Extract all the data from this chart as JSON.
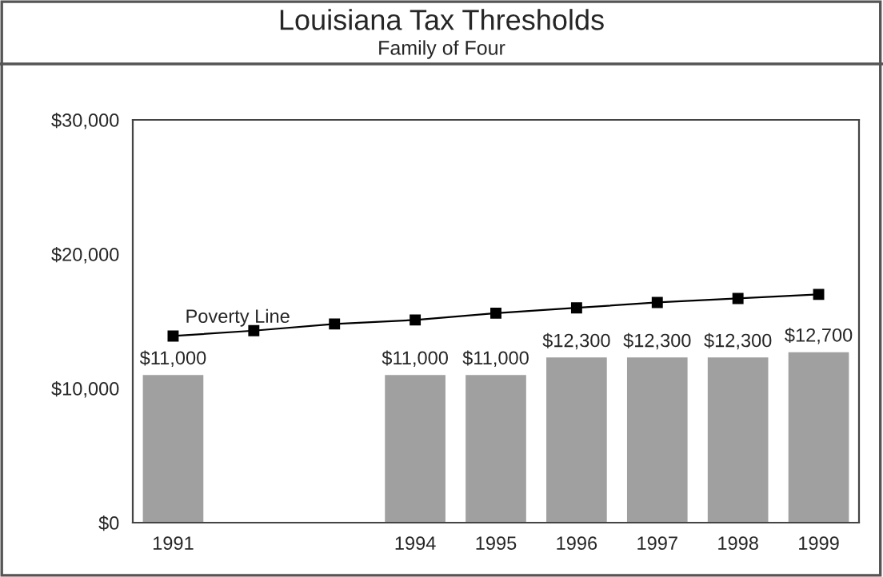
{
  "chart_data": {
    "type": "bar",
    "title": "Louisiana Tax Thresholds",
    "subtitle": "Family of Four",
    "categories": [
      "1991",
      null,
      null,
      "1994",
      "1995",
      "1996",
      "1997",
      "1998",
      "1999"
    ],
    "series": [
      {
        "color": "#a0a0a0",
        "values": [
          11000,
          null,
          null,
          11000,
          11000,
          12300,
          12300,
          12300,
          12700
        ],
        "value_labels": [
          "$11,000",
          null,
          null,
          "$11,000",
          "$11,000",
          "$12,300",
          "$12,300",
          "$12,300",
          "$12,700"
        ]
      },
      {
        "type": "line",
        "name": "Poverty Line",
        "color": "#000000",
        "marker": "square",
        "line_style": "solid",
        "values": [
          13900,
          14300,
          14800,
          15100,
          15600,
          16000,
          16400,
          16700,
          17000
        ]
      }
    ],
    "ylim": [
      0,
      30000
    ],
    "yticks": [
      {
        "value": 0,
        "label": "$0"
      },
      {
        "value": 10000,
        "label": "$10,000"
      },
      {
        "value": 20000,
        "label": "$20,000"
      },
      {
        "value": 30000,
        "label": "$30,000"
      }
    ],
    "grid": false,
    "legend": false
  }
}
